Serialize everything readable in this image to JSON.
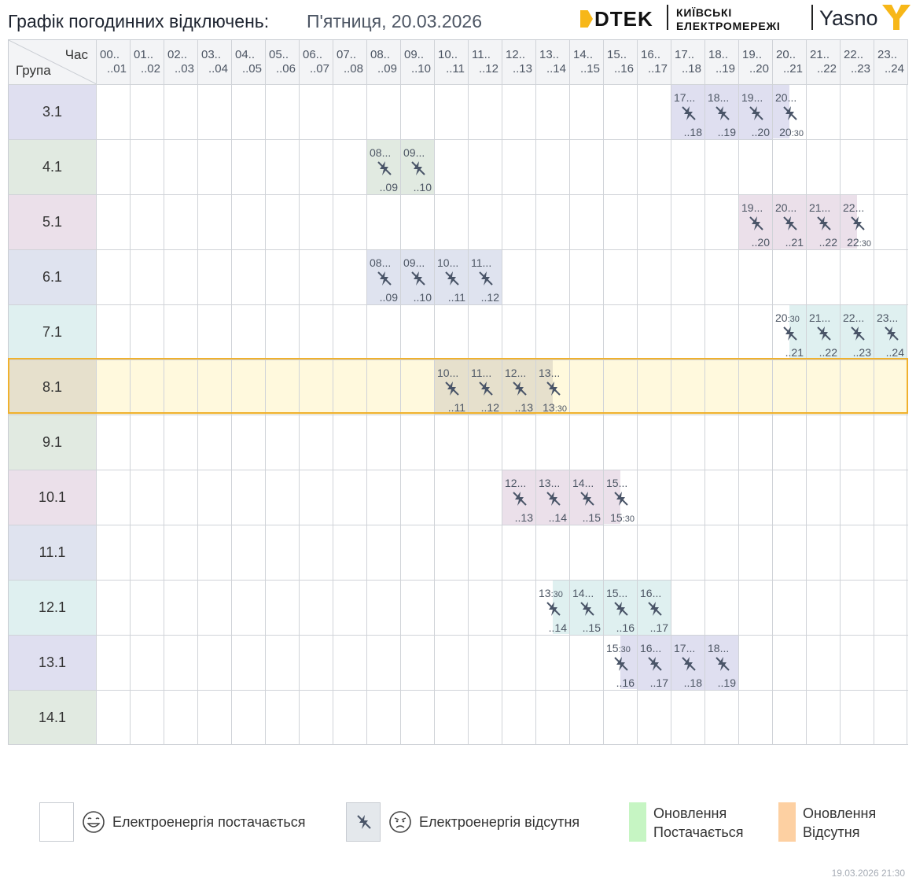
{
  "header": {
    "title": "Графік погодинних відключень:",
    "date": "П'ятниця, 20.03.2026",
    "logos": {
      "dtek": "DTEK",
      "kyiv_line1": "КИЇВСЬКІ",
      "kyiv_line2": "ЕЛЕКТРОМЕРЕЖІ",
      "yasno": "Yasno"
    }
  },
  "table": {
    "corner_top": "Час",
    "corner_bottom": "Група",
    "hours": [
      {
        "top": "00..",
        "bottom": "..01"
      },
      {
        "top": "01..",
        "bottom": "..02"
      },
      {
        "top": "02..",
        "bottom": "..03"
      },
      {
        "top": "03..",
        "bottom": "..04"
      },
      {
        "top": "04..",
        "bottom": "..05"
      },
      {
        "top": "05..",
        "bottom": "..06"
      },
      {
        "top": "06..",
        "bottom": "..07"
      },
      {
        "top": "07..",
        "bottom": "..08"
      },
      {
        "top": "08..",
        "bottom": "..09"
      },
      {
        "top": "09..",
        "bottom": "..10"
      },
      {
        "top": "10..",
        "bottom": "..11"
      },
      {
        "top": "11..",
        "bottom": "..12"
      },
      {
        "top": "12..",
        "bottom": "..13"
      },
      {
        "top": "13..",
        "bottom": "..14"
      },
      {
        "top": "14..",
        "bottom": "..15"
      },
      {
        "top": "15..",
        "bottom": "..16"
      },
      {
        "top": "16..",
        "bottom": "..17"
      },
      {
        "top": "17..",
        "bottom": "..18"
      },
      {
        "top": "18..",
        "bottom": "..19"
      },
      {
        "top": "19..",
        "bottom": "..20"
      },
      {
        "top": "20..",
        "bottom": "..21"
      },
      {
        "top": "21..",
        "bottom": "..22"
      },
      {
        "top": "22..",
        "bottom": "..23"
      },
      {
        "top": "23..",
        "bottom": "..24"
      }
    ],
    "groups": [
      {
        "name": "3.1",
        "color": "#dfdff0",
        "cells": [
          {
            "h": 17,
            "top": "17...",
            "bottom": "..18"
          },
          {
            "h": 18,
            "top": "18...",
            "bottom": "..19"
          },
          {
            "h": 19,
            "top": "19...",
            "bottom": "..20"
          },
          {
            "h": 20,
            "top": "20...",
            "bottom": "20",
            "bottom_min": ":30",
            "half": "left"
          }
        ]
      },
      {
        "name": "4.1",
        "color": "#e1eae1",
        "cells": [
          {
            "h": 8,
            "top": "08...",
            "bottom": "..09"
          },
          {
            "h": 9,
            "top": "09...",
            "bottom": "..10"
          }
        ]
      },
      {
        "name": "5.1",
        "color": "#ebe0ea",
        "cells": [
          {
            "h": 19,
            "top": "19...",
            "bottom": "..20"
          },
          {
            "h": 20,
            "top": "20...",
            "bottom": "..21"
          },
          {
            "h": 21,
            "top": "21...",
            "bottom": "..22"
          },
          {
            "h": 22,
            "top": "22...",
            "bottom": "22",
            "bottom_min": ":30",
            "half": "left"
          }
        ]
      },
      {
        "name": "6.1",
        "color": "#dfe3ef",
        "cells": [
          {
            "h": 8,
            "top": "08...",
            "bottom": "..09"
          },
          {
            "h": 9,
            "top": "09...",
            "bottom": "..10"
          },
          {
            "h": 10,
            "top": "10...",
            "bottom": "..11"
          },
          {
            "h": 11,
            "top": "11...",
            "bottom": "..12"
          }
        ]
      },
      {
        "name": "7.1",
        "color": "#dff0f0",
        "cells": [
          {
            "h": 20,
            "top": "20",
            "top_min": ":30",
            "bottom": "..21",
            "half": "right"
          },
          {
            "h": 21,
            "top": "21...",
            "bottom": "..22"
          },
          {
            "h": 22,
            "top": "22...",
            "bottom": "..23"
          },
          {
            "h": 23,
            "top": "23...",
            "bottom": "..24"
          }
        ]
      },
      {
        "name": "8.1",
        "color": "#e6e0cc",
        "highlight": true,
        "cells": [
          {
            "h": 10,
            "top": "10...",
            "bottom": "..11"
          },
          {
            "h": 11,
            "top": "11...",
            "bottom": "..12"
          },
          {
            "h": 12,
            "top": "12...",
            "bottom": "..13"
          },
          {
            "h": 13,
            "top": "13...",
            "bottom": "13",
            "bottom_min": ":30",
            "half": "left"
          }
        ]
      },
      {
        "name": "9.1",
        "color": "#e1eae1",
        "cells": []
      },
      {
        "name": "10.1",
        "color": "#ebe0ea",
        "cells": [
          {
            "h": 12,
            "top": "12...",
            "bottom": "..13"
          },
          {
            "h": 13,
            "top": "13...",
            "bottom": "..14"
          },
          {
            "h": 14,
            "top": "14...",
            "bottom": "..15"
          },
          {
            "h": 15,
            "top": "15...",
            "bottom": "15",
            "bottom_min": ":30",
            "half": "left"
          }
        ]
      },
      {
        "name": "11.1",
        "color": "#dfe3ef",
        "cells": []
      },
      {
        "name": "12.1",
        "color": "#dff0f0",
        "cells": [
          {
            "h": 13,
            "top": "13",
            "top_min": ":30",
            "bottom": "..14",
            "half": "right"
          },
          {
            "h": 14,
            "top": "14...",
            "bottom": "..15"
          },
          {
            "h": 15,
            "top": "15...",
            "bottom": "..16"
          },
          {
            "h": 16,
            "top": "16...",
            "bottom": "..17"
          }
        ]
      },
      {
        "name": "13.1",
        "color": "#dfdff0",
        "cells": [
          {
            "h": 15,
            "top": "15",
            "top_min": ":30",
            "bottom": "..16",
            "half": "right"
          },
          {
            "h": 16,
            "top": "16...",
            "bottom": "..17"
          },
          {
            "h": 17,
            "top": "17...",
            "bottom": "..18"
          },
          {
            "h": 18,
            "top": "18...",
            "bottom": "..19"
          }
        ]
      },
      {
        "name": "14.1",
        "color": "#e1eae1",
        "cells": []
      }
    ]
  },
  "legend": {
    "on_label": "Електроенергія постачається",
    "off_label": "Електроенергія відсутня",
    "update_on_line1": "Оновлення",
    "update_on_line2": "Постачається",
    "update_on_color": "#c6f5c3",
    "update_off_line1": "Оновлення",
    "update_off_line2": "Відсутня",
    "update_off_color": "#fdd0a2",
    "off_box_color": "#e4e8ec"
  },
  "footer": {
    "timestamp": "19.03.2026   21:30"
  },
  "icons": {
    "outage": "power-off-icon",
    "happy": "smile-face-icon",
    "sad": "sad-face-icon"
  }
}
